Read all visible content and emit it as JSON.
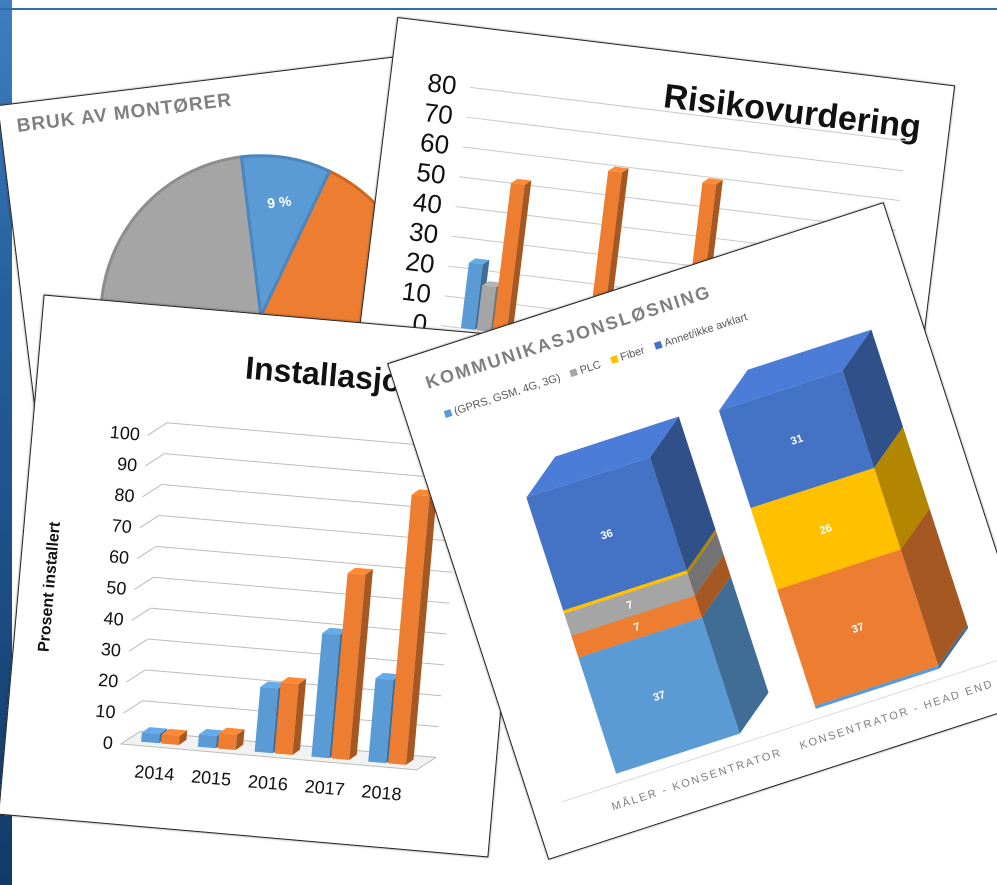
{
  "colors": {
    "blue": "#5b9bd5",
    "orange": "#ed7d31",
    "gray": "#a5a5a5",
    "yellow": "#ffc000",
    "darkblue": "#4472c4"
  },
  "chart_data": [
    {
      "type": "pie",
      "title": "BRUK AV MONTØRER",
      "labels": [
        "9 %"
      ],
      "visible_slices": [
        {
          "label": "9 %",
          "value": 9,
          "color": "#5b9bd5"
        }
      ]
    },
    {
      "type": "bar",
      "title": "Risikovurdering",
      "ylim": [
        0,
        80
      ],
      "yticks": [
        "80",
        "70",
        "60",
        "50",
        "40",
        "30",
        "20",
        "10",
        "0"
      ],
      "series": [
        {
          "color": "#5b9bd5",
          "values": [
            22,
            null,
            null
          ]
        },
        {
          "color": "#a5a5a5",
          "values": [
            15,
            null,
            null
          ]
        },
        {
          "color": "#ed7d31",
          "values": [
            50,
            58,
            58
          ]
        }
      ]
    },
    {
      "type": "bar",
      "title": "Installasjonsplan",
      "ylabel": "Prosent installert",
      "ylim": [
        0,
        100
      ],
      "yticks": [
        "100",
        "90",
        "80",
        "70",
        "60",
        "50",
        "40",
        "30",
        "20",
        "10",
        "0"
      ],
      "categories": [
        "2014",
        "2015",
        "2016",
        "2017",
        "2018"
      ],
      "series": [
        {
          "color": "#5b9bd5",
          "values": [
            3,
            4,
            21,
            40,
            27
          ]
        },
        {
          "color": "#ed7d31",
          "values": [
            3,
            5,
            23,
            60,
            87
          ]
        }
      ]
    },
    {
      "type": "bar",
      "title": "KOMMUNIKASJONSLØSNING",
      "legend": [
        "(GPRS, GSM, 4G, 3G)",
        "PLC",
        "Fiber",
        "Annet/ikke avklart"
      ],
      "categories": [
        "MÅLER - KONSENTRATOR",
        "KONSENTRATOR - HEAD END"
      ],
      "stacked": true,
      "series": [
        {
          "name": "(GPRS, GSM, 4G, 3G)",
          "color": "#5b9bd5",
          "values": [
            37,
            1
          ]
        },
        {
          "name": "",
          "color": "#ed7d31",
          "values": [
            7,
            37
          ]
        },
        {
          "name": "PLC",
          "color": "#a5a5a5",
          "values": [
            7,
            null
          ]
        },
        {
          "name": "Fiber",
          "color": "#ffc000",
          "values": [
            1,
            26
          ]
        },
        {
          "name": "Annet/ikke avklart",
          "color": "#4472c4",
          "values": [
            36,
            31
          ]
        }
      ]
    }
  ]
}
